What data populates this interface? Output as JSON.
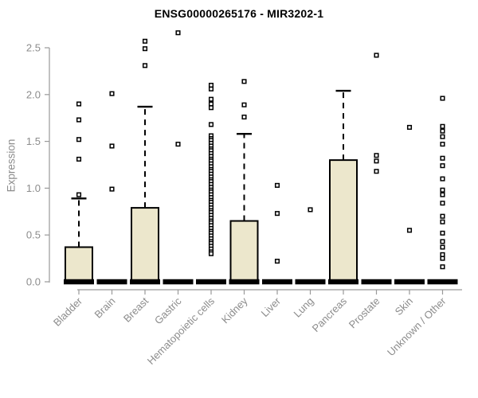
{
  "chart_data": {
    "type": "boxplot",
    "title": "ENSG00000265176 - MIR3202-1",
    "ylabel": "Expression",
    "ylim": [
      0,
      2.7
    ],
    "grid": false,
    "yticks": [
      {
        "v": 0.0,
        "label": "0.0"
      },
      {
        "v": 0.5,
        "label": "0.5"
      },
      {
        "v": 1.0,
        "label": "1.0"
      },
      {
        "v": 1.5,
        "label": "1.5"
      },
      {
        "v": 2.0,
        "label": "2.0"
      },
      {
        "v": 2.5,
        "label": "2.5"
      }
    ],
    "categories": [
      "Bladder",
      "Brain",
      "Breast",
      "Gastric",
      "Hematopoietic cells",
      "Kidney",
      "Liver",
      "Lung",
      "Pancreas",
      "Prostate",
      "Skin",
      "Unknown / Other"
    ],
    "boxes": [
      {
        "category": "Bladder",
        "q1": 0,
        "median": 0,
        "q3": 0.37,
        "whisker_low": 0,
        "whisker_high": 0.89,
        "outliers": [
          0.93,
          1.31,
          1.52,
          1.73,
          1.9
        ]
      },
      {
        "category": "Brain",
        "q1": 0,
        "median": 0,
        "q3": 0,
        "whisker_low": 0,
        "whisker_high": 0,
        "outliers": [
          0.99,
          1.45,
          2.01
        ]
      },
      {
        "category": "Breast",
        "q1": 0,
        "median": 0,
        "q3": 0.79,
        "whisker_low": 0,
        "whisker_high": 1.87,
        "outliers": [
          2.31,
          2.49,
          2.57
        ]
      },
      {
        "category": "Gastric",
        "q1": 0,
        "median": 0,
        "q3": 0,
        "whisker_low": 0,
        "whisker_high": 0,
        "outliers": [
          1.47,
          2.66
        ]
      },
      {
        "category": "Hematopoietic cells",
        "q1": 0,
        "median": 0,
        "q3": 0,
        "whisker_low": 0,
        "whisker_high": 0,
        "outliers": [
          2.1,
          2.06,
          1.95,
          1.9,
          1.86,
          1.68,
          1.56,
          1.53,
          1.51,
          1.48,
          1.45,
          1.42,
          1.4,
          1.37,
          1.34,
          1.31,
          1.29,
          1.26,
          1.23,
          1.2,
          1.18,
          1.15,
          1.12,
          1.09,
          1.07,
          1.04,
          1.01,
          0.98,
          0.96,
          0.93,
          0.9,
          0.87,
          0.85,
          0.82,
          0.79,
          0.76,
          0.74,
          0.71,
          0.68,
          0.65,
          0.63,
          0.6,
          0.57,
          0.54,
          0.52,
          0.49,
          0.46,
          0.43,
          0.41,
          0.38,
          0.35,
          0.32,
          0.3
        ]
      },
      {
        "category": "Kidney",
        "q1": 0,
        "median": 0,
        "q3": 0.65,
        "whisker_low": 0,
        "whisker_high": 1.58,
        "outliers": [
          1.76,
          1.89,
          2.14
        ]
      },
      {
        "category": "Liver",
        "q1": 0,
        "median": 0,
        "q3": 0,
        "whisker_low": 0,
        "whisker_high": 0,
        "outliers": [
          0.22,
          0.73,
          1.03
        ]
      },
      {
        "category": "Lung",
        "q1": 0,
        "median": 0,
        "q3": 0,
        "whisker_low": 0,
        "whisker_high": 0,
        "outliers": [
          0.77
        ]
      },
      {
        "category": "Pancreas",
        "q1": 0,
        "median": 0,
        "q3": 1.3,
        "whisker_low": 0,
        "whisker_high": 2.04,
        "outliers": []
      },
      {
        "category": "Prostate",
        "q1": 0,
        "median": 0,
        "q3": 0,
        "whisker_low": 0,
        "whisker_high": 0,
        "outliers": [
          1.18,
          1.29,
          1.35,
          2.42
        ]
      },
      {
        "category": "Skin",
        "q1": 0,
        "median": 0,
        "q3": 0,
        "whisker_low": 0,
        "whisker_high": 0,
        "outliers": [
          0.55,
          1.65
        ]
      },
      {
        "category": "Unknown / Other",
        "q1": 0,
        "median": 0,
        "q3": 0,
        "whisker_low": 0,
        "whisker_high": 0,
        "outliers": [
          1.96,
          1.66,
          1.61,
          1.55,
          1.47,
          1.32,
          1.24,
          1.1,
          0.98,
          0.93,
          0.84,
          0.7,
          0.64,
          0.52,
          0.43,
          0.37,
          0.29,
          0.25,
          0.16
        ]
      }
    ],
    "colors": {
      "box_fill": "#ECE7CC",
      "box_stroke": "#000000",
      "median": "#000000",
      "whisker": "#000000",
      "outlier_stroke": "#000000",
      "outlier_fill": "#ffffff",
      "axis_line": "#9a9a9a",
      "tick_text": "#8c8c8c",
      "title_text": "#000000",
      "background": "#ffffff"
    }
  }
}
